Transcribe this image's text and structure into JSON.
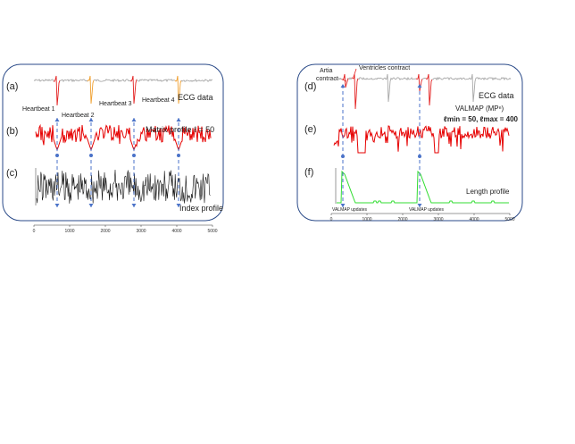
{
  "left_panel": {
    "row_labels": [
      "(a)",
      "(b)",
      "(c)"
    ],
    "ecg_label": "ECG data",
    "heartbeats": [
      "Heartbeat 1",
      "Heartbeat 2",
      "Heartbeat 3",
      "Heartbeat 4"
    ],
    "matrix_profile_label": "Matrix profile ℓ = 50",
    "index_profile_label": "Index profile",
    "x_ticks": [
      "0",
      "1000",
      "2000",
      "3000",
      "4000",
      "5000"
    ],
    "x_tick_values": [
      0,
      1000,
      2000,
      3000,
      4000,
      5000
    ]
  },
  "right_panel": {
    "row_labels": [
      "(d)",
      "(e)",
      "(f)"
    ],
    "artia_label_line1": "Artia",
    "artia_label_line2": "contract",
    "ventricles_label": "Ventricles contract",
    "ecg_label": "ECG data",
    "valmap_title": "VALMAP (MPⁿ)",
    "valmap_params": "ℓmin = 50, ℓmax = 400",
    "length_profile_label": "Length profile",
    "valmap_updates": [
      "VALMAP updates",
      "VALMAP updates"
    ],
    "x_ticks": [
      "0",
      "1000",
      "2000",
      "3000",
      "4000",
      "5000"
    ],
    "x_tick_values": [
      0,
      1000,
      2000,
      3000,
      4000,
      5000
    ]
  },
  "colors": {
    "ecg": "#a8a8a8",
    "heartbeat_red": "#e32020",
    "heartbeat_orange": "#f0a030",
    "matrix_profile": "#e60000",
    "index_profile": "#111111",
    "length_profile": "#33dd33",
    "arrow": "#4a72c8",
    "panel_border": "#2a4a88"
  }
}
